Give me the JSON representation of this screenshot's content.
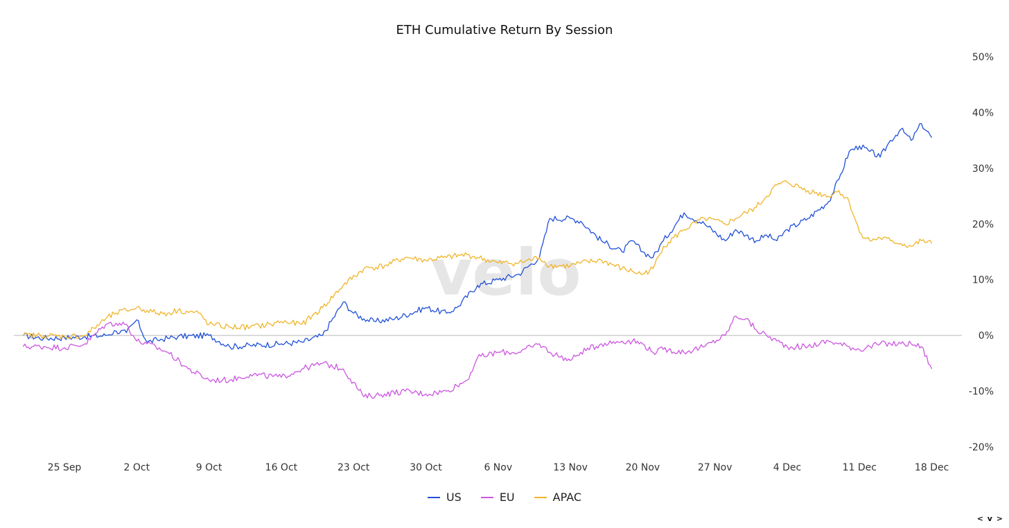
{
  "chart_data": {
    "type": "line",
    "title": "ETH Cumulative Return By Session",
    "xlabel": "",
    "ylabel": "",
    "x_ticks": [
      "25 Sep",
      "2 Oct",
      "9 Oct",
      "16 Oct",
      "23 Oct",
      "30 Oct",
      "6 Nov",
      "13 Nov",
      "20 Nov",
      "27 Nov",
      "4 Dec",
      "11 Dec",
      "18 Dec"
    ],
    "y_ticks": [
      50,
      40,
      30,
      20,
      10,
      0,
      -10,
      -20
    ],
    "y_tick_labels": [
      "50%",
      "40%",
      "30%",
      "20%",
      "10%",
      "0%",
      "-10%",
      "-20%"
    ],
    "ylim": [
      -20,
      50
    ],
    "day_range": [
      -7,
      84
    ],
    "day_origin": "25 Sep",
    "zero_line": true,
    "watermark": "velo",
    "legend_position": "bottom-center",
    "series": [
      {
        "name": "US",
        "color": "#1f4fd8",
        "x": [
          -4,
          -2,
          0,
          2,
          4,
          5,
          6,
          7,
          8,
          9,
          10,
          11,
          14,
          16,
          18,
          21,
          23,
          25,
          27,
          28,
          29,
          30,
          32,
          35,
          37,
          38,
          40,
          42,
          44,
          46,
          47,
          49,
          50,
          52,
          54,
          55,
          56,
          57,
          58,
          60,
          62,
          64,
          65,
          66,
          67,
          68,
          69,
          70,
          72,
          74,
          75,
          76,
          77,
          78,
          79,
          80,
          81,
          82,
          83,
          84
        ],
        "values": [
          0,
          -0.5,
          -0.4,
          -0.2,
          0,
          0.8,
          0.5,
          2.8,
          -1.2,
          -0.8,
          -0.5,
          -0.2,
          0,
          -2,
          -1.8,
          -1.5,
          -1.2,
          0,
          6,
          4,
          3,
          2.5,
          3,
          5,
          4,
          5,
          9,
          10,
          11,
          14,
          21,
          21,
          20.5,
          17,
          15,
          17,
          15,
          14,
          17,
          22,
          20,
          17,
          19,
          18,
          17,
          18,
          17,
          19,
          21,
          24,
          28,
          33,
          34,
          33,
          32,
          35,
          37,
          35,
          38,
          35.5
        ]
      },
      {
        "name": "EU",
        "color": "#cc55e0",
        "x": [
          -4,
          -2,
          0,
          2,
          4,
          5,
          6,
          7,
          8,
          10,
          12,
          14,
          16,
          18,
          21,
          23,
          25,
          27,
          29,
          31,
          33,
          35,
          37,
          38,
          39,
          40,
          42,
          44,
          46,
          47,
          49,
          50,
          52,
          54,
          55,
          56,
          57,
          58,
          60,
          62,
          64,
          65,
          66,
          67,
          68,
          69,
          70,
          72,
          74,
          75,
          76,
          77,
          78,
          79,
          80,
          81,
          82,
          83,
          84
        ],
        "values": [
          -2,
          -2,
          -2.2,
          -1.5,
          2,
          2.2,
          2,
          -1,
          -1.5,
          -3,
          -6,
          -8,
          -8,
          -7,
          -7.5,
          -6,
          -5,
          -6,
          -11,
          -10.5,
          -10,
          -10.5,
          -10,
          -9,
          -8,
          -4,
          -3,
          -3,
          -1.5,
          -3,
          -4.5,
          -3,
          -1.5,
          -1,
          -1,
          -1.5,
          -3,
          -2.5,
          -3,
          -2,
          0,
          3.5,
          3,
          1,
          0,
          -1,
          -2,
          -2,
          -1,
          -1.5,
          -2,
          -2.5,
          -2,
          -1.5,
          -1.5,
          -1.5,
          -1.5,
          -2,
          -6
        ]
      },
      {
        "name": "APAC",
        "color": "#f0b429",
        "x": [
          -4,
          -2,
          0,
          2,
          4,
          5,
          6,
          7,
          8,
          9,
          10,
          11,
          13,
          14,
          16,
          18,
          20,
          21,
          23,
          25,
          27,
          29,
          31,
          33,
          35,
          37,
          39,
          40,
          42,
          44,
          46,
          47,
          49,
          50,
          52,
          54,
          55,
          56,
          57,
          58,
          60,
          62,
          64,
          65,
          66,
          67,
          68,
          69,
          70,
          72,
          74,
          75,
          76,
          77,
          78,
          79,
          80,
          81,
          82,
          83,
          84
        ],
        "values": [
          0,
          0,
          -0.2,
          0,
          3,
          4,
          4.5,
          5,
          4.5,
          4,
          4,
          4.5,
          4,
          2,
          1.5,
          1.5,
          2,
          2.5,
          2,
          5,
          9,
          12,
          12.5,
          14,
          13.5,
          14,
          14.5,
          14,
          13,
          13,
          14,
          12.5,
          12.5,
          13,
          13.5,
          12,
          11.5,
          11,
          12,
          16,
          19,
          21,
          20,
          21,
          22,
          23,
          25,
          27,
          27.5,
          26,
          25,
          26,
          24,
          18.5,
          17,
          17.5,
          17,
          16.5,
          16,
          17,
          16.5
        ]
      }
    ]
  },
  "ui": {
    "nav_arrows": "< v >"
  }
}
